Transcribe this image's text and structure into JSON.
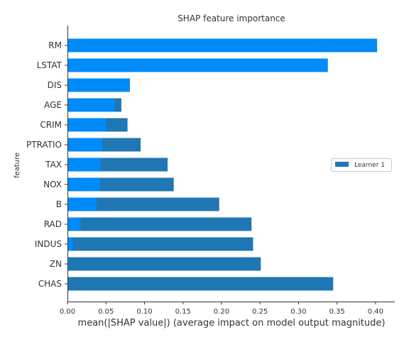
{
  "chart_data": {
    "type": "bar",
    "orientation": "horizontal",
    "title": "SHAP feature importance",
    "xlabel": "mean(|SHAP value|) (average impact on model output magnitude)",
    "ylabel": "feature",
    "xlim": [
      0,
      0.425
    ],
    "xticks": [
      0.0,
      0.05,
      0.1,
      0.15,
      0.2,
      0.25,
      0.3,
      0.35,
      0.4
    ],
    "xtick_labels": [
      "0.00",
      "0.05",
      "0.10",
      "0.15",
      "0.20",
      "0.25",
      "0.30",
      "0.35",
      "0.40"
    ],
    "categories": [
      "RM",
      "LSTAT",
      "DIS",
      "AGE",
      "CRIM",
      "PTRATIO",
      "TAX",
      "NOX",
      "B",
      "RAD",
      "INDUS",
      "ZN",
      "CHAS"
    ],
    "series": [
      {
        "name": "Learner 1",
        "color": "#1f77b4",
        "values": [
          0.402,
          0.338,
          0.081,
          0.07,
          0.078,
          0.095,
          0.13,
          0.138,
          0.197,
          0.239,
          0.241,
          0.251,
          0.345
        ]
      },
      {
        "color": "#008bfb",
        "values": [
          0.402,
          0.338,
          0.081,
          0.061,
          0.05,
          0.045,
          0.043,
          0.042,
          0.038,
          0.017,
          0.007,
          0.002,
          0.001
        ]
      }
    ],
    "legend": {
      "position": "right",
      "entries": [
        "Learner 1"
      ]
    },
    "grid": false
  }
}
